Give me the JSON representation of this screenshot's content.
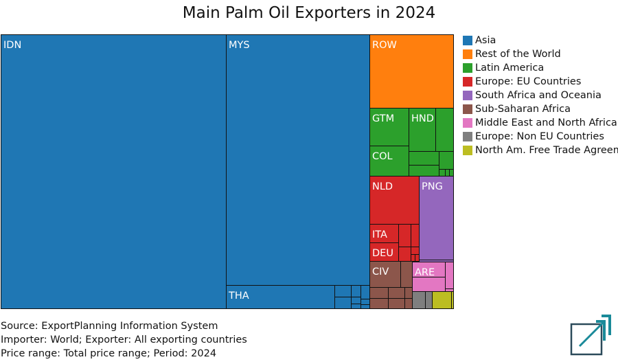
{
  "title": "Main Palm Oil Exporters in 2024",
  "chart_data": {
    "type": "treemap",
    "title": "Main Palm Oil Exporters in 2024",
    "groups": [
      {
        "name": "Asia",
        "color": "#1f77b4",
        "items": [
          {
            "label": "IDN",
            "value": 49.6
          },
          {
            "label": "MYS",
            "value": 31.2
          },
          {
            "label": "THA",
            "value": 5.0
          },
          {
            "label": "",
            "value": 2.0
          }
        ]
      },
      {
        "name": "Rest of the World",
        "color": "#ff7f0e",
        "items": [
          {
            "label": "ROW",
            "value": 4.6
          }
        ]
      },
      {
        "name": "Latin America",
        "color": "#2ca02c",
        "items": [
          {
            "label": "GTM",
            "value": 1.3
          },
          {
            "label": "HND",
            "value": 1.1
          },
          {
            "label": "COL",
            "value": 1.0
          },
          {
            "label": "",
            "value": 1.4
          }
        ]
      },
      {
        "name": "Europe: EU Countries",
        "color": "#d62728",
        "items": [
          {
            "label": "NLD",
            "value": 1.7
          },
          {
            "label": "ITA",
            "value": 0.6
          },
          {
            "label": "DEU",
            "value": 0.5
          },
          {
            "label": "",
            "value": 0.7
          }
        ]
      },
      {
        "name": "South Africa and Oceania",
        "color": "#9467bd",
        "items": [
          {
            "label": "PNG",
            "value": 1.6
          }
        ]
      },
      {
        "name": "Sub-Saharan Africa",
        "color": "#8c564b",
        "items": [
          {
            "label": "CIV",
            "value": 0.6
          },
          {
            "label": "",
            "value": 0.5
          }
        ]
      },
      {
        "name": "Middle East and North Africa",
        "color": "#e377c2",
        "items": [
          {
            "label": "ARE",
            "value": 0.3
          },
          {
            "label": "",
            "value": 0.4
          }
        ]
      },
      {
        "name": "Europe: Non EU Countries",
        "color": "#7f7f7f",
        "items": [
          {
            "label": "",
            "value": 0.3
          }
        ]
      },
      {
        "name": "North Am. Free Trade Agreement",
        "color": "#bcbd22",
        "items": [
          {
            "label": "",
            "value": 0.3
          }
        ]
      }
    ]
  },
  "legend": [
    {
      "label": "Asia",
      "color": "#1f77b4"
    },
    {
      "label": "Rest of the World",
      "color": "#ff7f0e"
    },
    {
      "label": "Latin America",
      "color": "#2ca02c"
    },
    {
      "label": "Europe: EU Countries",
      "color": "#d62728"
    },
    {
      "label": "South Africa and Oceania",
      "color": "#9467bd"
    },
    {
      "label": "Sub-Saharan Africa",
      "color": "#8c564b"
    },
    {
      "label": "Middle East and North Africa",
      "color": "#e377c2"
    },
    {
      "label": "Europe: Non EU Countries",
      "color": "#7f7f7f"
    },
    {
      "label": "North Am. Free Trade Agreement",
      "color": "#bcbd22"
    }
  ],
  "footer": {
    "source": "Source: ExportPlanning Information System",
    "importer": "Importer: World; Exporter: All exporting countries",
    "range": "Price range: Total price range; Period: 2024"
  },
  "logo": {
    "name": "exportplanning-logo-icon",
    "color": "#1a8a99"
  }
}
